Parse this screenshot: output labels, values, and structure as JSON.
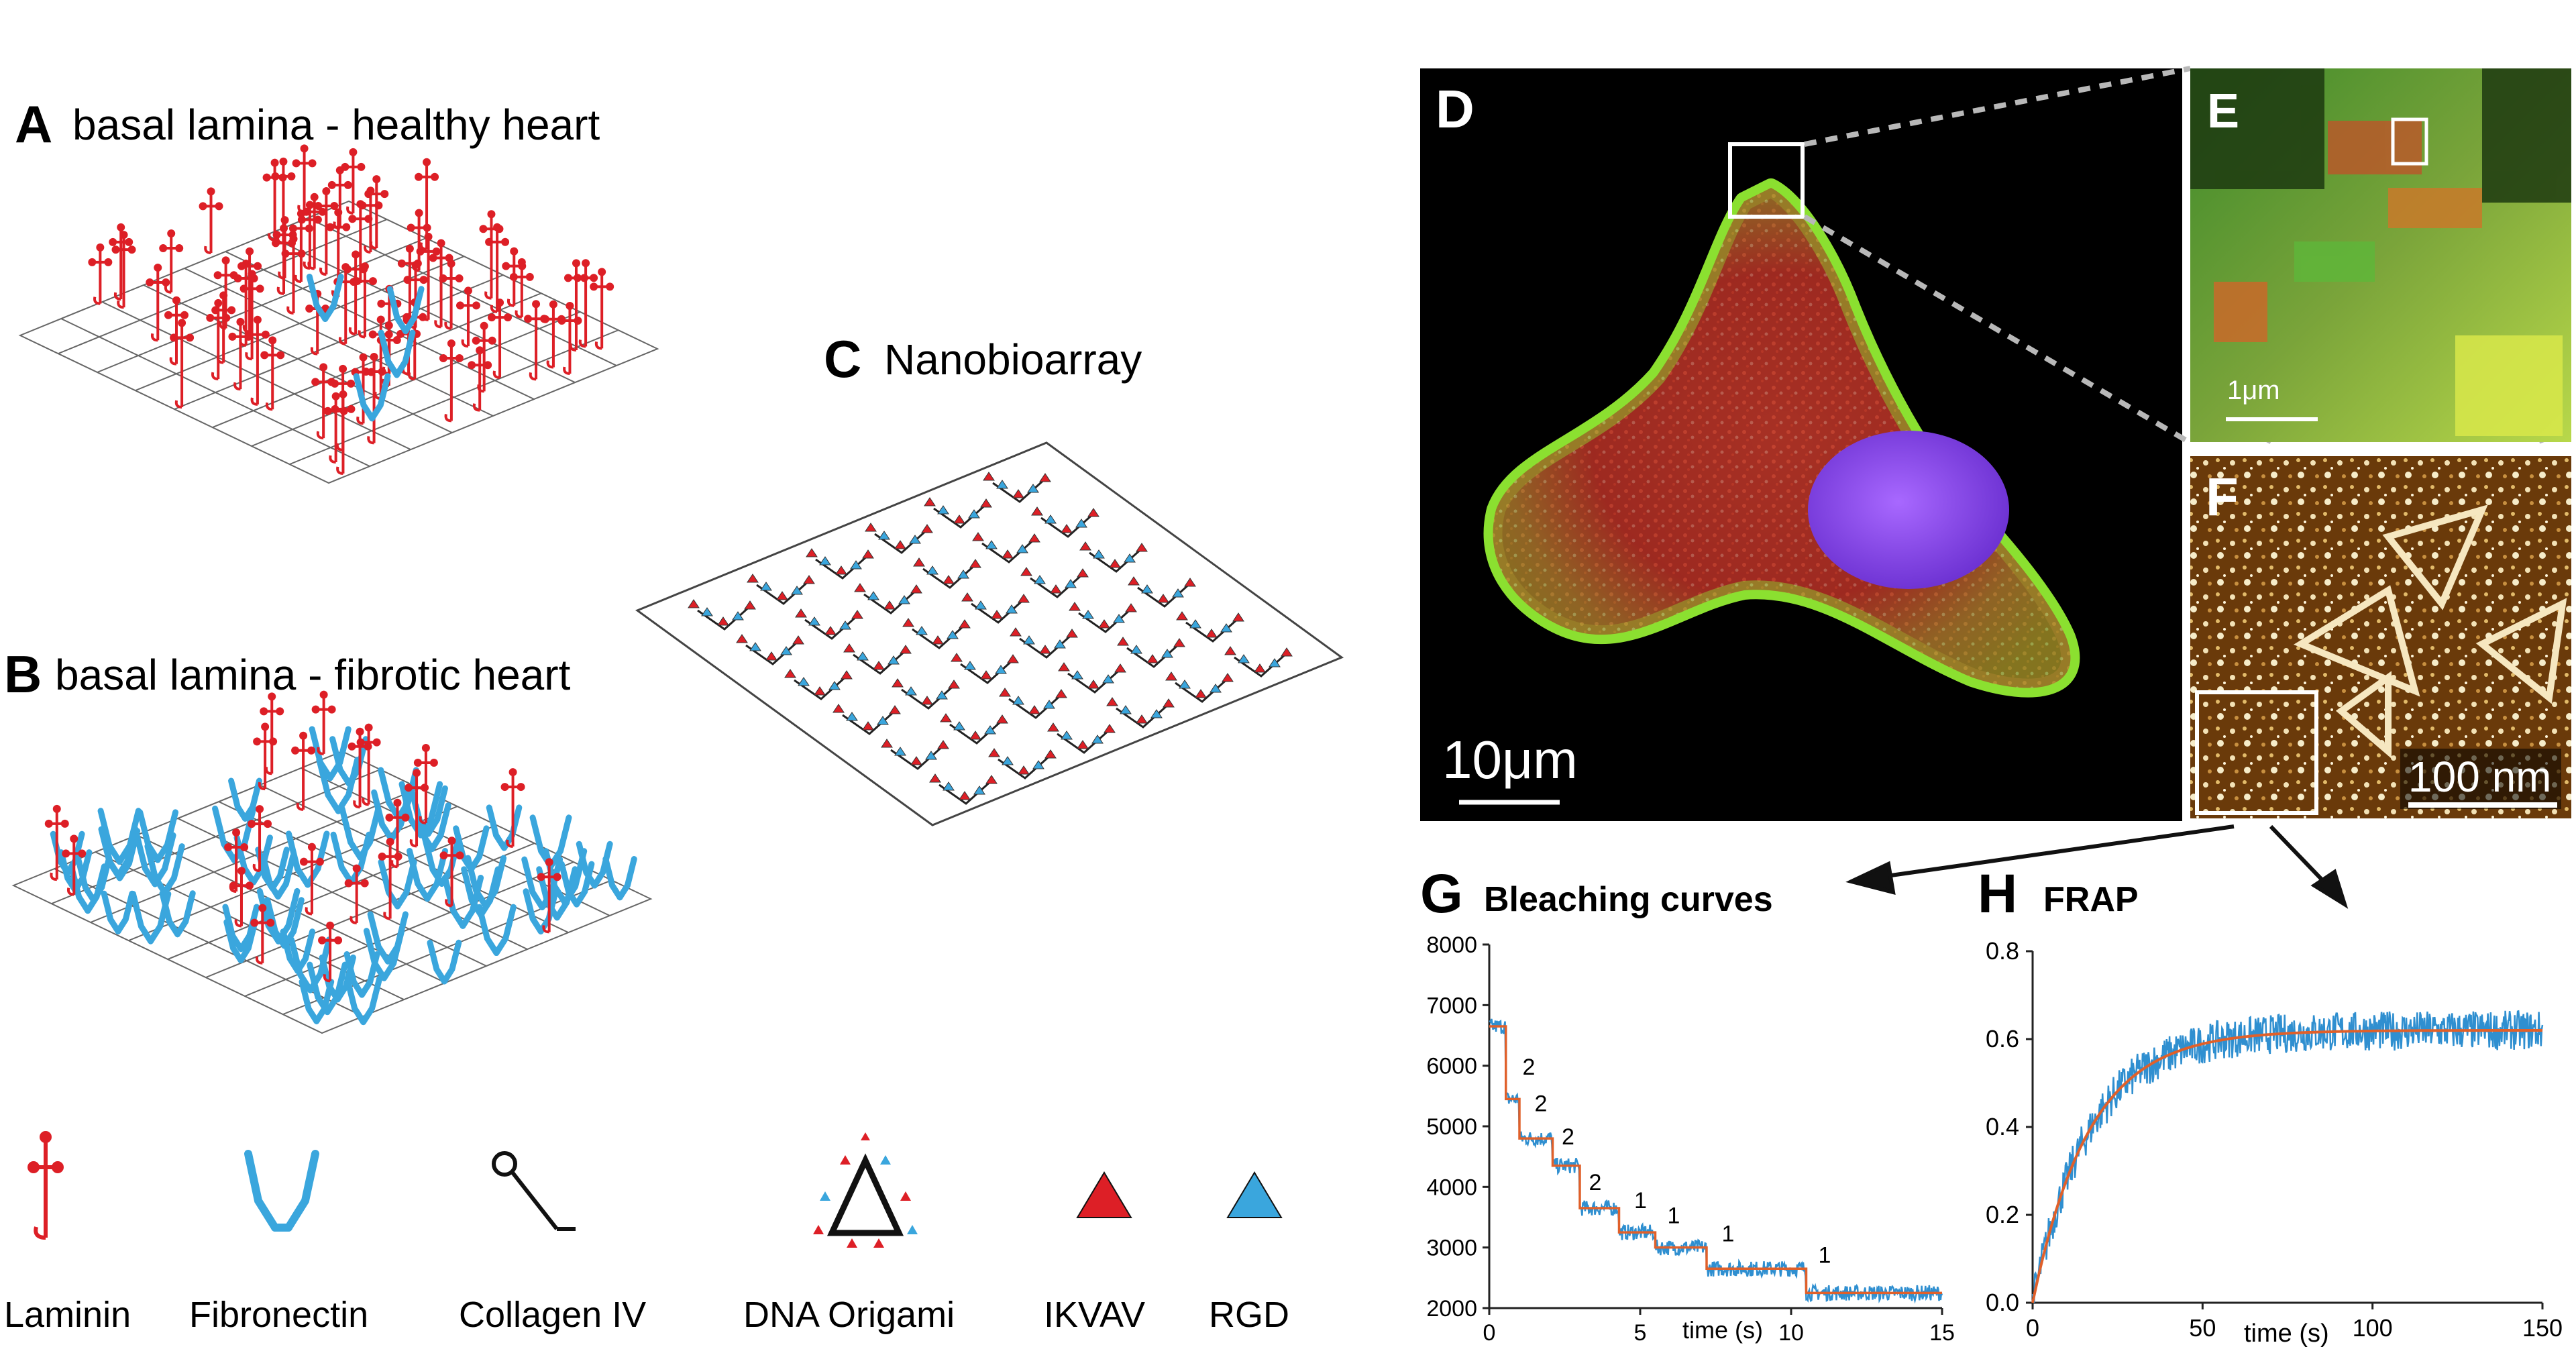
{
  "panels": {
    "A": {
      "letter": "A",
      "title": "basal lamina - healthy heart"
    },
    "B": {
      "letter": "B",
      "title": "basal lamina - fibrotic heart"
    },
    "C": {
      "letter": "C",
      "title": "Nanobioarray"
    },
    "D": {
      "letter": "D",
      "scalebar": "10μm"
    },
    "E": {
      "letter": "E",
      "scalebar": "1μm"
    },
    "F": {
      "letter": "F",
      "scalebar": "100 nm"
    },
    "G": {
      "letter": "G",
      "title": "Bleaching curves"
    },
    "H": {
      "letter": "H",
      "title": "FRAP"
    }
  },
  "legend": [
    {
      "label": "Laminin",
      "icon": "laminin-icon"
    },
    {
      "label": "Fibronectin",
      "icon": "fibronectin-icon"
    },
    {
      "label": "Collagen IV",
      "icon": "collagen-icon"
    },
    {
      "label": "DNA Origami",
      "icon": "dna-origami-icon"
    },
    {
      "label": "IKVAV",
      "icon": "ikvav-triangle-icon"
    },
    {
      "label": "RGD",
      "icon": "rgd-triangle-icon"
    }
  ],
  "colors": {
    "laminin": "#dd1f26",
    "fibronectin": "#3aa6dd",
    "trace": "#2f8fd0",
    "fit": "#e0602a"
  },
  "chart_data": [
    {
      "type": "line",
      "title": "Bleaching curves",
      "xlabel": "time (s)",
      "ylabel": "",
      "xlim": [
        0,
        15
      ],
      "ylim": [
        2000,
        8000
      ],
      "xticks": [
        0,
        5,
        10,
        15
      ],
      "yticks": [
        2000,
        3000,
        4000,
        5000,
        6000,
        7000,
        8000
      ],
      "series": [
        {
          "values_x": [
            0,
            0.55,
            0.55,
            1.0,
            1.0,
            2.1,
            2.1,
            3.0,
            3.0,
            4.3,
            4.3,
            5.5,
            5.5,
            7.2,
            7.2,
            10.5,
            10.5,
            15
          ],
          "values_y": [
            6650,
            6650,
            5450,
            5450,
            4800,
            4800,
            4350,
            4350,
            3650,
            3650,
            3250,
            3250,
            3000,
            3000,
            2650,
            2650,
            2250,
            2250
          ]
        }
      ],
      "step_annotations": [
        {
          "x": 1.1,
          "y": 5850,
          "text": "2"
        },
        {
          "x": 1.5,
          "y": 5250,
          "text": "2"
        },
        {
          "x": 2.4,
          "y": 4700,
          "text": "2"
        },
        {
          "x": 3.3,
          "y": 3950,
          "text": "2"
        },
        {
          "x": 4.8,
          "y": 3650,
          "text": "1"
        },
        {
          "x": 5.9,
          "y": 3400,
          "text": "1"
        },
        {
          "x": 7.7,
          "y": 3100,
          "text": "1"
        },
        {
          "x": 10.9,
          "y": 2750,
          "text": "1"
        }
      ]
    },
    {
      "type": "line",
      "title": "FRAP",
      "xlabel": "time (s)",
      "ylabel": "",
      "xlim": [
        0,
        150
      ],
      "ylim": [
        0,
        0.8
      ],
      "xticks": [
        0,
        50,
        100,
        150
      ],
      "yticks": [
        0.0,
        0.2,
        0.4,
        0.6,
        0.8
      ],
      "fit": {
        "plateau": 0.62,
        "rate": 0.06
      }
    }
  ]
}
